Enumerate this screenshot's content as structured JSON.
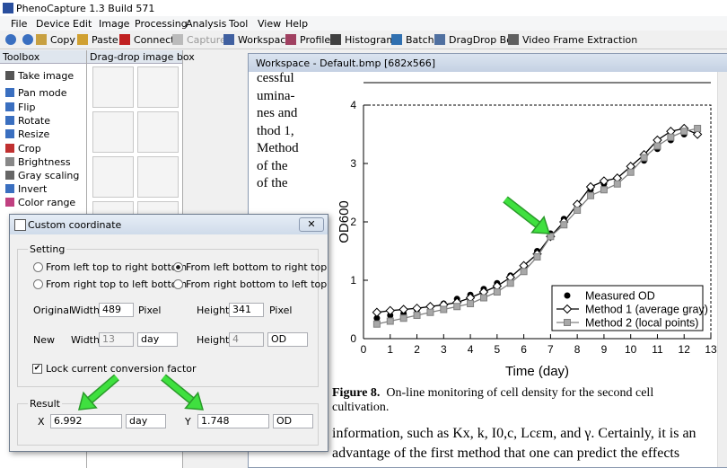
{
  "title_bar": "PhenoCapture 1.3  Build 571",
  "menu": [
    "File",
    "Device",
    "Edit",
    "Image",
    "Processing",
    "Analysis",
    "Tool",
    "View",
    "Help"
  ],
  "toolbar": [
    "Copy",
    "Paste",
    "Connect",
    "Capture",
    "Workspace",
    "Profile",
    "Histogram",
    "Batch",
    "DragDrop Box",
    "Video Frame Extraction"
  ],
  "toolbox": {
    "title": "Toolbox",
    "items": [
      "Take image",
      "Pan mode",
      "Flip",
      "Rotate",
      "Resize",
      "Crop",
      "Brightness",
      "Gray scaling",
      "Invert",
      "Color range"
    ]
  },
  "dragdrop": {
    "title": "Drag-drop image box"
  },
  "workspace": {
    "title": "Workspace - Default.bmp   [682x566]",
    "text_lines": [
      "cessful",
      "umina-",
      "nes and",
      "thod 1,",
      "Method",
      "of the",
      "of the"
    ],
    "caption_label": "Figure 8.",
    "caption": "On-line monitoring of cell density for the second cell cultivation.",
    "body_lines": [
      "information, such as Kx, k, I0,c, Lcεm, and γ. Certainly, it is an",
      "advantage of the first method that one can predict the effects"
    ],
    "chart": {
      "type": "line",
      "x_label": "Time (day)",
      "y_label": "OD600",
      "xlim": [
        0,
        13
      ],
      "ylim": [
        0,
        4
      ],
      "xticks": [
        0,
        1,
        2,
        3,
        4,
        5,
        6,
        7,
        8,
        9,
        10,
        11,
        12,
        13
      ],
      "yticks": [
        0,
        1,
        2,
        3,
        4
      ],
      "x": [
        0.5,
        1,
        1.5,
        2,
        2.5,
        3,
        3.5,
        4,
        4.5,
        5,
        5.5,
        6,
        6.5,
        7,
        7.5,
        8,
        8.5,
        9,
        9.5,
        10,
        10.5,
        11,
        11.5,
        12,
        12.5
      ],
      "series": [
        {
          "name": "Measured OD",
          "color": "#000000",
          "marker": "circle",
          "line": false,
          "values": [
            0.35,
            0.4,
            0.43,
            0.5,
            0.55,
            0.6,
            0.68,
            0.75,
            0.85,
            0.95,
            1.08,
            1.22,
            1.5,
            1.8,
            2.05,
            2.3,
            2.55,
            2.65,
            2.75,
            2.9,
            3.05,
            3.25,
            3.4,
            3.5,
            3.5
          ]
        },
        {
          "name": "Method 1 (average gray)",
          "color": "#000000",
          "marker": "diamond",
          "line": true,
          "values": [
            0.45,
            0.48,
            0.5,
            0.52,
            0.55,
            0.58,
            0.62,
            0.7,
            0.8,
            0.9,
            1.05,
            1.25,
            1.45,
            1.75,
            2.0,
            2.3,
            2.6,
            2.7,
            2.75,
            2.95,
            3.15,
            3.4,
            3.55,
            3.6,
            3.5
          ]
        },
        {
          "name": "Method 2 (local points)",
          "color": "#808080",
          "marker": "square",
          "line": true,
          "values": [
            0.25,
            0.3,
            0.35,
            0.4,
            0.45,
            0.5,
            0.55,
            0.6,
            0.7,
            0.8,
            0.95,
            1.15,
            1.4,
            1.75,
            1.95,
            2.2,
            2.45,
            2.55,
            2.65,
            2.85,
            3.1,
            3.3,
            3.45,
            3.55,
            3.6
          ]
        }
      ]
    }
  },
  "dialog": {
    "title": "Custom coordinate",
    "setting_label": "Setting",
    "options": [
      "From left top to right bottom",
      "From left bottom to right top",
      "From right top to left bottom",
      "From right bottom to left top"
    ],
    "selected_option": 1,
    "original": {
      "label": "Original",
      "width_label": "Width",
      "width": "489",
      "width_unit": "Pixel",
      "height_label": "Height",
      "height": "341",
      "height_unit": "Pixel"
    },
    "new": {
      "label": "New",
      "width_label": "Width",
      "width": "13",
      "width_unit": "day",
      "height_label": "Height",
      "height": "4",
      "height_unit": "OD"
    },
    "lock_label": "Lock current conversion factor",
    "lock_checked": true,
    "result_label": "Result",
    "result": {
      "x_label": "X",
      "x": "6.992",
      "x_unit": "day",
      "y_label": "Y",
      "y": "1.748",
      "y_unit": "OD"
    }
  }
}
